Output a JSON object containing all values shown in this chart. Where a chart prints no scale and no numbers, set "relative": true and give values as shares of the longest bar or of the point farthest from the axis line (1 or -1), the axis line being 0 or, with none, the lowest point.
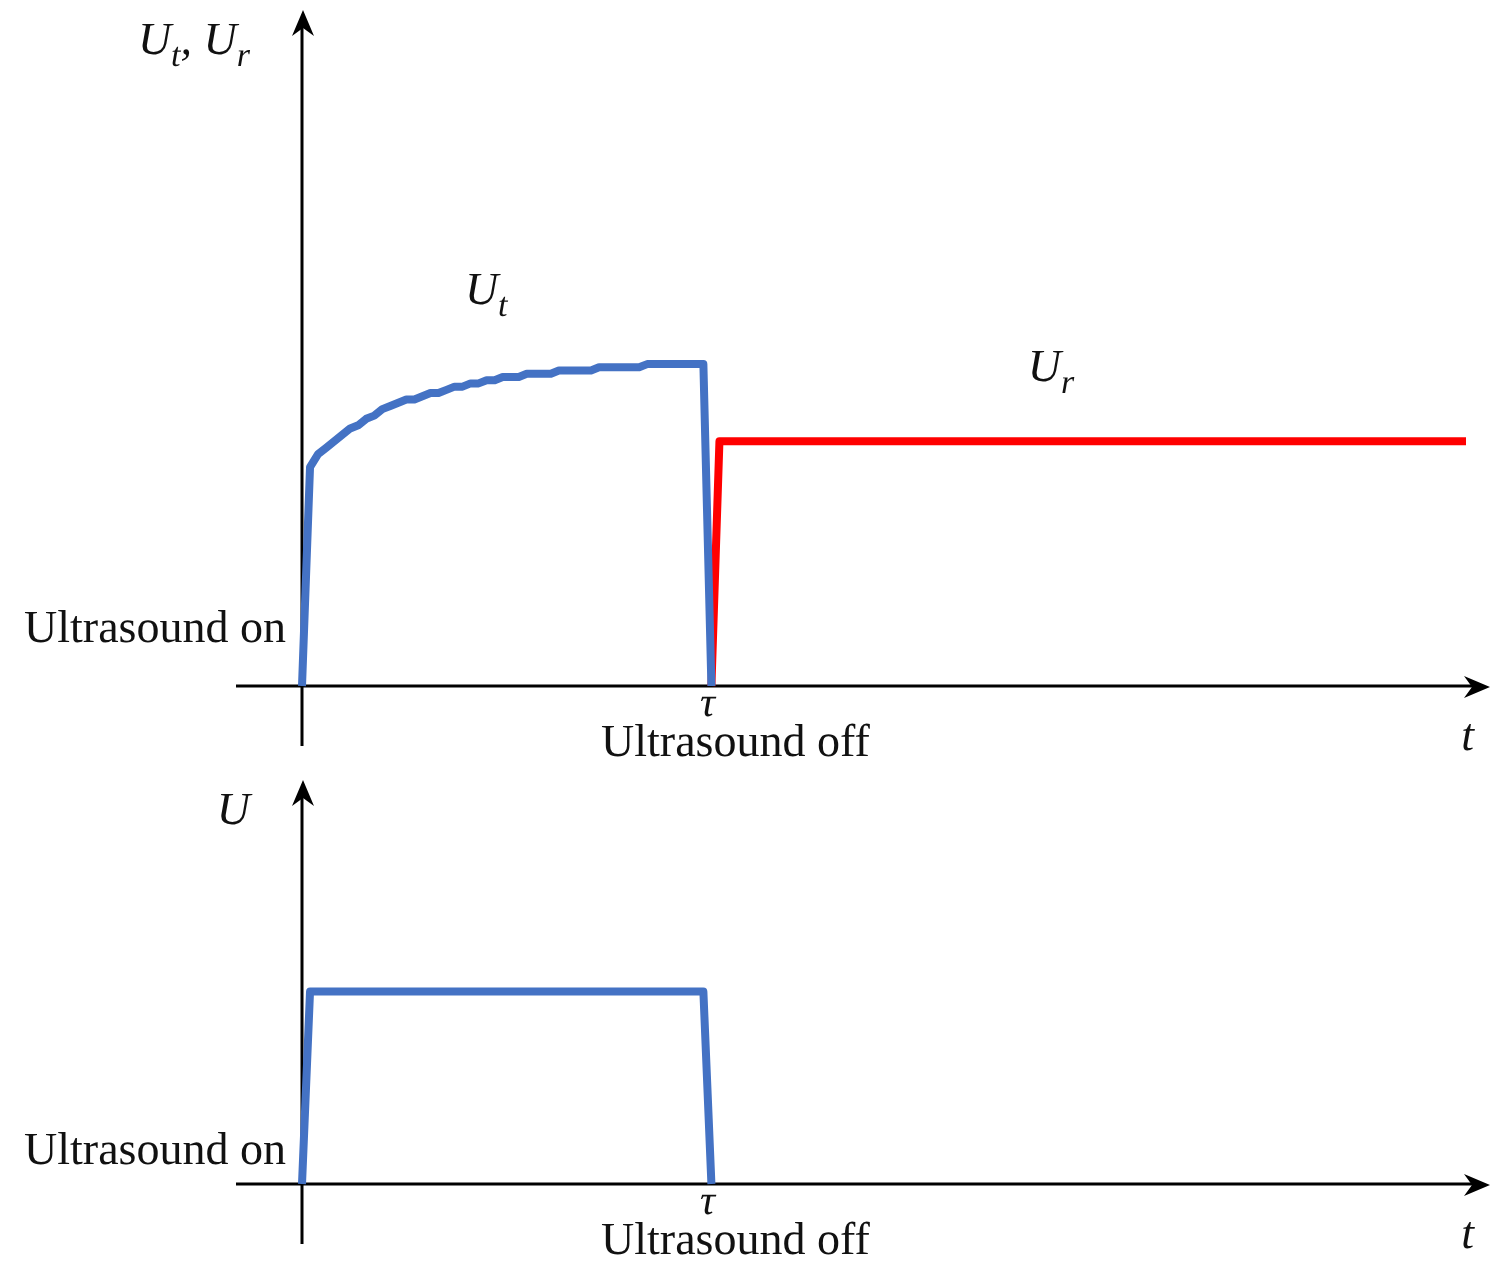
{
  "chart_data": [
    {
      "type": "line",
      "ylabel": "U$_{t}$, U$_{r}$",
      "xlabel": "t",
      "relative": true,
      "categories": [
        null,
        null,
        null,
        null,
        null,
        null,
        null,
        null,
        null,
        null,
        null,
        null,
        null,
        null,
        null,
        null,
        null,
        null,
        null,
        null,
        null,
        null,
        null,
        null,
        null,
        null,
        null,
        null,
        null,
        null,
        null,
        null,
        null,
        null,
        null,
        null,
        null,
        null,
        null,
        null,
        null,
        null,
        null,
        null,
        null,
        null,
        null,
        null,
        null,
        null,
        null,
        null,
        null,
        null,
        null,
        null,
        null,
        null,
        null,
        null,
        null,
        null,
        null,
        null,
        null,
        null,
        null,
        null,
        null,
        null,
        null,
        null,
        null,
        null,
        null,
        null,
        null,
        null,
        null,
        null,
        null,
        null,
        null,
        null,
        null,
        null,
        null,
        null,
        null,
        null,
        null,
        null,
        null,
        null,
        null,
        null,
        null,
        null,
        null,
        null,
        null,
        null,
        null,
        null,
        null,
        null,
        null,
        null,
        null,
        null,
        null,
        null,
        null,
        null,
        null,
        null,
        null,
        null,
        null,
        null,
        null,
        null,
        null,
        null,
        null,
        null,
        null,
        null,
        null,
        null,
        null,
        null,
        null,
        null,
        null,
        null,
        null,
        null,
        null,
        null,
        null,
        null,
        null,
        null,
        null,
        null
      ],
      "series": [
        {
          "name": "U$_{t}$",
          "color": "#4472c4",
          "values": [
            0,
            0.68,
            0.72,
            0.74,
            0.76,
            0.78,
            0.8,
            0.81,
            0.83,
            0.84,
            0.86,
            0.87,
            0.88,
            0.89,
            0.89,
            0.9,
            0.91,
            0.91,
            0.92,
            0.93,
            0.93,
            0.94,
            0.94,
            0.95,
            0.95,
            0.96,
            0.96,
            0.96,
            0.97,
            0.97,
            0.97,
            0.97,
            0.98,
            0.98,
            0.98,
            0.98,
            0.98,
            0.99,
            0.99,
            0.99,
            0.99,
            0.99,
            0.99,
            1,
            1,
            1,
            1,
            1,
            1,
            1,
            1,
            0,
            null,
            null,
            null,
            null,
            null,
            null,
            null,
            null,
            null,
            null,
            null,
            null,
            null,
            null,
            null,
            null,
            null,
            null,
            null,
            null,
            null,
            null,
            null,
            null,
            null,
            null,
            null,
            null,
            null,
            null,
            null,
            null,
            null,
            null,
            null,
            null,
            null,
            null,
            null,
            null,
            null,
            null,
            null,
            null,
            null,
            null,
            null,
            null,
            null,
            null,
            null,
            null,
            null,
            null,
            null,
            null,
            null,
            null,
            null,
            null,
            null,
            null,
            null,
            null,
            null,
            null,
            null,
            null,
            null,
            null,
            null,
            null,
            null,
            null,
            null,
            null,
            null,
            null,
            null,
            null,
            null,
            null,
            null,
            null,
            null,
            null,
            null,
            null,
            null,
            null,
            null,
            null,
            null,
            null
          ]
        },
        {
          "name": "U$_{r}$",
          "color": "#ff0000",
          "values": [
            null,
            null,
            null,
            null,
            null,
            null,
            null,
            null,
            null,
            null,
            null,
            null,
            null,
            null,
            null,
            null,
            null,
            null,
            null,
            null,
            null,
            null,
            null,
            null,
            null,
            null,
            null,
            null,
            null,
            null,
            null,
            null,
            null,
            null,
            null,
            null,
            null,
            null,
            null,
            null,
            null,
            null,
            null,
            null,
            null,
            null,
            null,
            null,
            null,
            null,
            null,
            0,
            0.76,
            0.76,
            0.76,
            0.76,
            0.76,
            0.76,
            0.76,
            0.76,
            0.76,
            0.76,
            0.76,
            0.76,
            0.76,
            0.76,
            0.76,
            0.76,
            0.76,
            0.76,
            0.76,
            0.76,
            0.76,
            0.76,
            0.76,
            0.76,
            0.76,
            0.76,
            0.76,
            0.76,
            0.76,
            0.76,
            0.76,
            0.76,
            0.76,
            0.76,
            0.76,
            0.76,
            0.76,
            0.76,
            0.76,
            0.76,
            0.76,
            0.76,
            0.76,
            0.76,
            0.76,
            0.76,
            0.76,
            0.76,
            0.76,
            0.76,
            0.76,
            0.76,
            0.76,
            0.76,
            0.76,
            0.76,
            0.76,
            0.76,
            0.76,
            0.76,
            0.76,
            0.76,
            0.76,
            0.76,
            0.76,
            0.76,
            0.76,
            0.76,
            0.76,
            0.76,
            0.76,
            0.76,
            0.76,
            0.76,
            0.76,
            0.76,
            0.76,
            0.76,
            0.76,
            0.76,
            0.76,
            0.76,
            0.76,
            0.76,
            0.76,
            0.76,
            0.76,
            0.76,
            0.76,
            0.76,
            0.76,
            0.76,
            0.76,
            0.76
          ]
        }
      ],
      "annotations": [
        "Ultrasound on",
        "τ",
        "Ultrasound off"
      ]
    },
    {
      "type": "line",
      "ylabel": "U",
      "xlabel": "t",
      "relative": true,
      "categories": [
        null,
        null,
        null,
        null,
        null,
        null,
        null,
        null,
        null,
        null,
        null,
        null,
        null,
        null,
        null,
        null,
        null,
        null,
        null,
        null,
        null,
        null,
        null,
        null,
        null,
        null,
        null,
        null,
        null,
        null,
        null,
        null,
        null,
        null,
        null,
        null,
        null,
        null,
        null,
        null,
        null,
        null,
        null,
        null,
        null,
        null,
        null,
        null,
        null,
        null,
        null,
        null,
        null,
        null,
        null,
        null,
        null,
        null,
        null,
        null,
        null,
        null,
        null,
        null,
        null,
        null,
        null,
        null,
        null,
        null,
        null,
        null,
        null,
        null,
        null,
        null,
        null,
        null,
        null,
        null,
        null,
        null,
        null,
        null,
        null,
        null,
        null,
        null,
        null,
        null,
        null,
        null,
        null,
        null,
        null,
        null,
        null,
        null,
        null,
        null,
        null,
        null,
        null,
        null,
        null,
        null,
        null,
        null,
        null,
        null,
        null,
        null,
        null,
        null,
        null,
        null,
        null,
        null,
        null,
        null,
        null,
        null,
        null,
        null,
        null,
        null,
        null,
        null,
        null,
        null,
        null,
        null,
        null,
        null,
        null,
        null,
        null,
        null,
        null,
        null,
        null,
        null,
        null,
        null,
        null,
        null
      ],
      "series": [
        {
          "color": "#4472c4",
          "values": [
            0,
            1,
            1,
            1,
            1,
            1,
            1,
            1,
            1,
            1,
            1,
            1,
            1,
            1,
            1,
            1,
            1,
            1,
            1,
            1,
            1,
            1,
            1,
            1,
            1,
            1,
            1,
            1,
            1,
            1,
            1,
            1,
            1,
            1,
            1,
            1,
            1,
            1,
            1,
            1,
            1,
            1,
            1,
            1,
            1,
            1,
            1,
            1,
            1,
            1,
            1,
            0,
            null,
            null,
            null,
            null,
            null,
            null,
            null,
            null,
            null,
            null,
            null,
            null,
            null,
            null,
            null,
            null,
            null,
            null,
            null,
            null,
            null,
            null,
            null,
            null,
            null,
            null,
            null,
            null,
            null,
            null,
            null,
            null,
            null,
            null,
            null,
            null,
            null,
            null,
            null,
            null,
            null,
            null,
            null,
            null,
            null,
            null,
            null,
            null,
            null,
            null,
            null,
            null,
            null,
            null,
            null,
            null,
            null,
            null,
            null,
            null,
            null,
            null,
            null,
            null,
            null,
            null,
            null,
            null,
            null,
            null,
            null,
            null,
            null,
            null,
            null,
            null,
            null,
            null,
            null,
            null,
            null,
            null,
            null,
            null,
            null,
            null,
            null,
            null,
            null,
            null,
            null,
            null,
            null,
            null
          ]
        }
      ],
      "annotations": [
        "Ultrasound on",
        "τ",
        "Ultrasound off"
      ]
    }
  ]
}
